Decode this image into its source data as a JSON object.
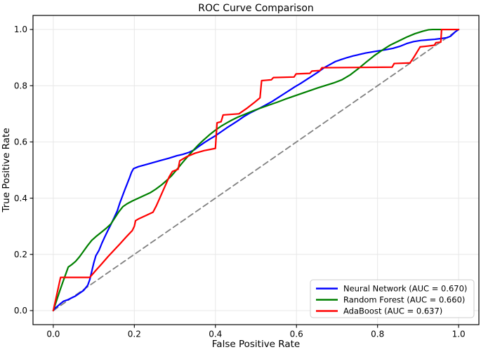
{
  "chart_data": {
    "type": "line",
    "title": "ROC Curve Comparison",
    "xlabel": "False Positive Rate",
    "ylabel": "True Positive Rate",
    "xlim": [
      -0.05,
      1.05
    ],
    "ylim": [
      -0.05,
      1.05
    ],
    "xticks": [
      0.0,
      0.2,
      0.4,
      0.6,
      0.8,
      1.0
    ],
    "yticks": [
      0.0,
      0.2,
      0.4,
      0.6,
      0.8,
      1.0
    ],
    "xtick_labels": [
      "0.0",
      "0.2",
      "0.4",
      "0.6",
      "0.8",
      "1.0"
    ],
    "ytick_labels": [
      "0.0",
      "0.2",
      "0.4",
      "0.6",
      "0.8",
      "1.0"
    ],
    "grid": true,
    "legend_position": "lower right",
    "frame_color": "#000000",
    "grid_color": "#e7e7e7",
    "series": [
      {
        "id": "chance-diagonal",
        "name": "Chance",
        "color": "#808080",
        "style": "dashed",
        "dash": "8,5",
        "width": 1.8,
        "show_in_legend": false,
        "points": [
          [
            0,
            0
          ],
          [
            1,
            1
          ]
        ]
      },
      {
        "id": "neural-network",
        "name": "Neural Network (AUC = 0.670)",
        "color": "#0000ff",
        "style": "solid",
        "dash": "",
        "width": 2.2,
        "show_in_legend": true,
        "points": [
          [
            0,
            0
          ],
          [
            0.004,
            0.008
          ],
          [
            0.01,
            0.015
          ],
          [
            0.018,
            0.025
          ],
          [
            0.025,
            0.033
          ],
          [
            0.035,
            0.038
          ],
          [
            0.045,
            0.045
          ],
          [
            0.055,
            0.052
          ],
          [
            0.065,
            0.062
          ],
          [
            0.075,
            0.072
          ],
          [
            0.085,
            0.09
          ],
          [
            0.09,
            0.11
          ],
          [
            0.095,
            0.14
          ],
          [
            0.1,
            0.17
          ],
          [
            0.105,
            0.195
          ],
          [
            0.113,
            0.215
          ],
          [
            0.12,
            0.24
          ],
          [
            0.127,
            0.262
          ],
          [
            0.134,
            0.283
          ],
          [
            0.141,
            0.303
          ],
          [
            0.15,
            0.33
          ],
          [
            0.158,
            0.355
          ],
          [
            0.164,
            0.382
          ],
          [
            0.17,
            0.405
          ],
          [
            0.176,
            0.428
          ],
          [
            0.182,
            0.45
          ],
          [
            0.188,
            0.472
          ],
          [
            0.193,
            0.492
          ],
          [
            0.198,
            0.505
          ],
          [
            0.21,
            0.512
          ],
          [
            0.225,
            0.518
          ],
          [
            0.245,
            0.526
          ],
          [
            0.265,
            0.534
          ],
          [
            0.285,
            0.542
          ],
          [
            0.305,
            0.551
          ],
          [
            0.32,
            0.556
          ],
          [
            0.335,
            0.563
          ],
          [
            0.348,
            0.572
          ],
          [
            0.36,
            0.585
          ],
          [
            0.373,
            0.598
          ],
          [
            0.386,
            0.61
          ],
          [
            0.4,
            0.622
          ],
          [
            0.414,
            0.636
          ],
          [
            0.428,
            0.65
          ],
          [
            0.442,
            0.663
          ],
          [
            0.456,
            0.676
          ],
          [
            0.47,
            0.69
          ],
          [
            0.484,
            0.702
          ],
          [
            0.498,
            0.712
          ],
          [
            0.512,
            0.722
          ],
          [
            0.526,
            0.733
          ],
          [
            0.54,
            0.744
          ],
          [
            0.554,
            0.757
          ],
          [
            0.568,
            0.77
          ],
          [
            0.582,
            0.783
          ],
          [
            0.596,
            0.796
          ],
          [
            0.61,
            0.808
          ],
          [
            0.625,
            0.822
          ],
          [
            0.64,
            0.836
          ],
          [
            0.655,
            0.85
          ],
          [
            0.668,
            0.864
          ],
          [
            0.682,
            0.875
          ],
          [
            0.696,
            0.886
          ],
          [
            0.71,
            0.893
          ],
          [
            0.725,
            0.9
          ],
          [
            0.74,
            0.906
          ],
          [
            0.755,
            0.911
          ],
          [
            0.77,
            0.916
          ],
          [
            0.794,
            0.922
          ],
          [
            0.82,
            0.928
          ],
          [
            0.838,
            0.933
          ],
          [
            0.855,
            0.94
          ],
          [
            0.872,
            0.95
          ],
          [
            0.889,
            0.957
          ],
          [
            0.907,
            0.961
          ],
          [
            0.924,
            0.963
          ],
          [
            0.941,
            0.965
          ],
          [
            0.958,
            0.968
          ],
          [
            0.972,
            0.971
          ],
          [
            0.98,
            0.976
          ],
          [
            0.986,
            0.984
          ],
          [
            0.992,
            0.992
          ],
          [
            1,
            1
          ]
        ]
      },
      {
        "id": "random-forest",
        "name": "Random Forest (AUC = 0.660)",
        "color": "#008000",
        "style": "solid",
        "dash": "",
        "width": 2.2,
        "show_in_legend": true,
        "points": [
          [
            0,
            0
          ],
          [
            0.008,
            0.035
          ],
          [
            0.016,
            0.07
          ],
          [
            0.024,
            0.103
          ],
          [
            0.032,
            0.135
          ],
          [
            0.037,
            0.155
          ],
          [
            0.045,
            0.163
          ],
          [
            0.055,
            0.175
          ],
          [
            0.065,
            0.192
          ],
          [
            0.075,
            0.212
          ],
          [
            0.085,
            0.232
          ],
          [
            0.095,
            0.25
          ],
          [
            0.105,
            0.263
          ],
          [
            0.118,
            0.278
          ],
          [
            0.13,
            0.292
          ],
          [
            0.142,
            0.308
          ],
          [
            0.152,
            0.33
          ],
          [
            0.162,
            0.352
          ],
          [
            0.172,
            0.37
          ],
          [
            0.182,
            0.38
          ],
          [
            0.195,
            0.39
          ],
          [
            0.21,
            0.4
          ],
          [
            0.225,
            0.41
          ],
          [
            0.24,
            0.42
          ],
          [
            0.253,
            0.432
          ],
          [
            0.266,
            0.446
          ],
          [
            0.279,
            0.462
          ],
          [
            0.292,
            0.48
          ],
          [
            0.305,
            0.502
          ],
          [
            0.318,
            0.525
          ],
          [
            0.331,
            0.547
          ],
          [
            0.344,
            0.568
          ],
          [
            0.357,
            0.588
          ],
          [
            0.371,
            0.607
          ],
          [
            0.385,
            0.625
          ],
          [
            0.399,
            0.641
          ],
          [
            0.413,
            0.655
          ],
          [
            0.427,
            0.667
          ],
          [
            0.441,
            0.678
          ],
          [
            0.455,
            0.688
          ],
          [
            0.472,
            0.698
          ],
          [
            0.492,
            0.71
          ],
          [
            0.512,
            0.721
          ],
          [
            0.532,
            0.731
          ],
          [
            0.552,
            0.741
          ],
          [
            0.572,
            0.752
          ],
          [
            0.592,
            0.762
          ],
          [
            0.612,
            0.772
          ],
          [
            0.632,
            0.782
          ],
          [
            0.652,
            0.792
          ],
          [
            0.672,
            0.801
          ],
          [
            0.692,
            0.81
          ],
          [
            0.712,
            0.821
          ],
          [
            0.732,
            0.838
          ],
          [
            0.752,
            0.86
          ],
          [
            0.772,
            0.884
          ],
          [
            0.792,
            0.907
          ],
          [
            0.812,
            0.927
          ],
          [
            0.832,
            0.945
          ],
          [
            0.852,
            0.959
          ],
          [
            0.872,
            0.973
          ],
          [
            0.892,
            0.985
          ],
          [
            0.912,
            0.994
          ],
          [
            0.926,
            0.999
          ],
          [
            0.936,
            1
          ],
          [
            1,
            1
          ]
        ]
      },
      {
        "id": "adaboost",
        "name": "AdaBoost (AUC = 0.637)",
        "color": "#ff0000",
        "style": "solid",
        "dash": "",
        "width": 2.2,
        "show_in_legend": true,
        "points": [
          [
            0,
            0
          ],
          [
            0.018,
            0.118
          ],
          [
            0.09,
            0.118
          ],
          [
            0.105,
            0.143
          ],
          [
            0.12,
            0.167
          ],
          [
            0.135,
            0.192
          ],
          [
            0.15,
            0.215
          ],
          [
            0.165,
            0.238
          ],
          [
            0.18,
            0.262
          ],
          [
            0.195,
            0.285
          ],
          [
            0.2,
            0.3
          ],
          [
            0.203,
            0.32
          ],
          [
            0.21,
            0.326
          ],
          [
            0.228,
            0.338
          ],
          [
            0.246,
            0.35
          ],
          [
            0.254,
            0.372
          ],
          [
            0.262,
            0.398
          ],
          [
            0.27,
            0.424
          ],
          [
            0.278,
            0.45
          ],
          [
            0.286,
            0.476
          ],
          [
            0.294,
            0.495
          ],
          [
            0.308,
            0.503
          ],
          [
            0.312,
            0.533
          ],
          [
            0.33,
            0.548
          ],
          [
            0.35,
            0.56
          ],
          [
            0.372,
            0.569
          ],
          [
            0.4,
            0.577
          ],
          [
            0.404,
            0.668
          ],
          [
            0.414,
            0.672
          ],
          [
            0.419,
            0.696
          ],
          [
            0.458,
            0.7
          ],
          [
            0.477,
            0.719
          ],
          [
            0.495,
            0.739
          ],
          [
            0.51,
            0.757
          ],
          [
            0.514,
            0.818
          ],
          [
            0.538,
            0.821
          ],
          [
            0.543,
            0.829
          ],
          [
            0.594,
            0.831
          ],
          [
            0.599,
            0.842
          ],
          [
            0.633,
            0.844
          ],
          [
            0.638,
            0.852
          ],
          [
            0.658,
            0.854
          ],
          [
            0.663,
            0.864
          ],
          [
            0.836,
            0.866
          ],
          [
            0.841,
            0.879
          ],
          [
            0.88,
            0.881
          ],
          [
            0.889,
            0.9
          ],
          [
            0.897,
            0.919
          ],
          [
            0.905,
            0.938
          ],
          [
            0.924,
            0.941
          ],
          [
            0.94,
            0.944
          ],
          [
            0.944,
            0.953
          ],
          [
            0.956,
            0.955
          ],
          [
            0.958,
            1
          ],
          [
            1,
            1
          ]
        ]
      }
    ]
  }
}
